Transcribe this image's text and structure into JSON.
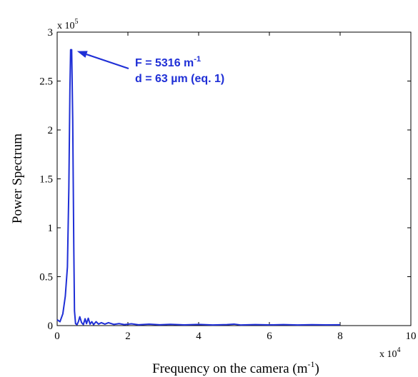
{
  "chart_data": {
    "type": "line",
    "xlabel": "Frequency on the camera (m",
    "xlabel_sup": "-1",
    "xlabel_close": ")",
    "ylabel": "Power Spectrum",
    "x_multiplier": {
      "base": "x 10",
      "exp": "4"
    },
    "y_multiplier": {
      "base": "x 10",
      "exp": "5"
    },
    "xlim": [
      0,
      100000
    ],
    "ylim": [
      0,
      300000
    ],
    "x_ticks": [
      {
        "value": 0,
        "label": "0"
      },
      {
        "value": 20000,
        "label": "2"
      },
      {
        "value": 40000,
        "label": "4"
      },
      {
        "value": 60000,
        "label": "6"
      },
      {
        "value": 80000,
        "label": "8"
      },
      {
        "value": 100000,
        "label": "10"
      }
    ],
    "y_ticks": [
      {
        "value": 0,
        "label": "0"
      },
      {
        "value": 50000,
        "label": "0.5"
      },
      {
        "value": 100000,
        "label": "1"
      },
      {
        "value": 150000,
        "label": "1.5"
      },
      {
        "value": 200000,
        "label": "2"
      },
      {
        "value": 250000,
        "label": "2.5"
      },
      {
        "value": 300000,
        "label": "3"
      }
    ],
    "grid": false,
    "series": [
      {
        "color": "#1f2fd6",
        "points": [
          [
            0,
            6000
          ],
          [
            800,
            4000
          ],
          [
            1600,
            12000
          ],
          [
            2300,
            30000
          ],
          [
            2900,
            60000
          ],
          [
            3300,
            140000
          ],
          [
            3600,
            240000
          ],
          [
            3800,
            282000
          ],
          [
            4100,
            282000
          ],
          [
            4400,
            210000
          ],
          [
            4700,
            80000
          ],
          [
            4900,
            15000
          ],
          [
            5200,
            2000
          ],
          [
            5600,
            1000
          ],
          [
            6000,
            4000
          ],
          [
            6400,
            9000
          ],
          [
            6900,
            3000
          ],
          [
            7400,
            1000
          ],
          [
            7900,
            7000
          ],
          [
            8300,
            2000
          ],
          [
            8800,
            7500
          ],
          [
            9300,
            1500
          ],
          [
            9800,
            4000
          ],
          [
            10300,
            1000
          ],
          [
            11000,
            4000
          ],
          [
            11700,
            1500
          ],
          [
            12500,
            3000
          ],
          [
            13500,
            1500
          ],
          [
            14500,
            3000
          ],
          [
            16000,
            1200
          ],
          [
            17500,
            2000
          ],
          [
            19000,
            1000
          ],
          [
            21000,
            1800
          ],
          [
            23000,
            800
          ],
          [
            26000,
            1500
          ],
          [
            29000,
            800
          ],
          [
            32000,
            1300
          ],
          [
            36000,
            700
          ],
          [
            40000,
            1200
          ],
          [
            44000,
            600
          ],
          [
            48000,
            1000
          ],
          [
            50000,
            1500
          ],
          [
            52000,
            600
          ],
          [
            56000,
            1000
          ],
          [
            60000,
            700
          ],
          [
            64000,
            1000
          ],
          [
            68000,
            600
          ],
          [
            72000,
            900
          ],
          [
            76000,
            700
          ],
          [
            80000,
            800
          ]
        ]
      }
    ],
    "annotation": {
      "line1": "F = 5316 m",
      "line1_sup": "-1",
      "line2": "d = 63 µm (eq. 1)",
      "color": "#1f2fd6",
      "arrow_target": [
        4000,
        282000
      ]
    }
  }
}
